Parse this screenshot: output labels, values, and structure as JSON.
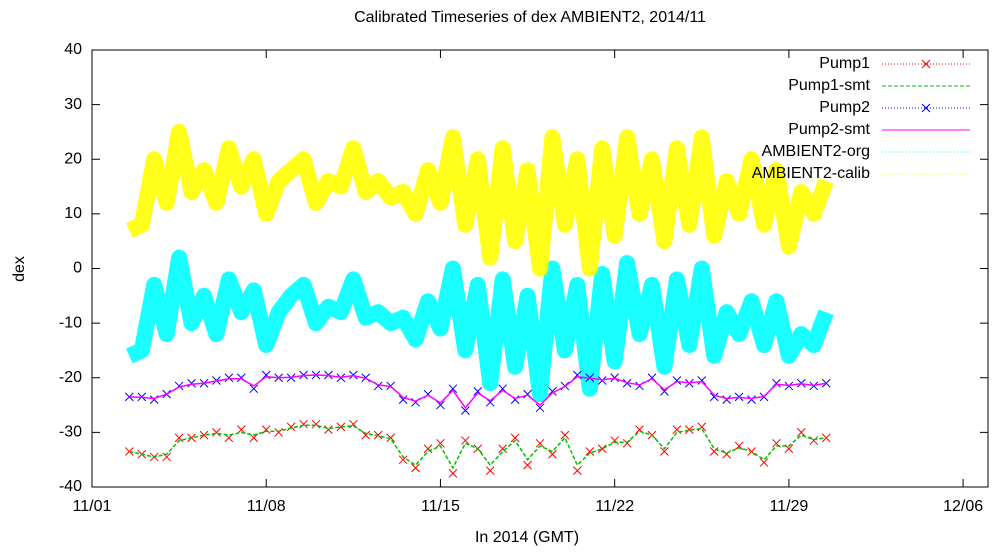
{
  "chart_data": {
    "type": "line",
    "title": "Calibrated Timeseries of dex AMBIENT2, 2014/11",
    "xlabel": "In 2014 (GMT)",
    "ylabel": "dex",
    "xlim": [
      0,
      36
    ],
    "xticks": [
      {
        "value": 0,
        "label": "11/01"
      },
      {
        "value": 7,
        "label": "11/08"
      },
      {
        "value": 14,
        "label": "11/15"
      },
      {
        "value": 21,
        "label": "11/22"
      },
      {
        "value": 28,
        "label": "11/29"
      },
      {
        "value": 35,
        "label": "12/06"
      }
    ],
    "ylim": [
      -40,
      40
    ],
    "yticks": [
      -40,
      -30,
      -20,
      -10,
      0,
      10,
      20,
      30,
      40
    ],
    "legend": "top-right",
    "x": [
      1.5,
      2,
      2.5,
      3,
      3.5,
      4,
      4.5,
      5,
      5.5,
      6,
      6.5,
      7,
      7.5,
      8,
      8.5,
      9,
      9.5,
      10,
      10.5,
      11,
      11.5,
      12,
      12.5,
      13,
      13.5,
      14,
      14.5,
      15,
      15.5,
      16,
      16.5,
      17,
      17.5,
      18,
      18.5,
      19,
      19.5,
      20,
      20.5,
      21,
      21.5,
      22,
      22.5,
      23,
      23.5,
      24,
      24.5,
      25,
      25.5,
      26,
      26.5,
      27,
      27.5,
      28,
      28.5,
      29,
      29.5
    ],
    "series": [
      {
        "name": "Pump1",
        "color": "#ff0000",
        "style": "marker",
        "values": [
          -33.5,
          -34,
          -34.5,
          -34.5,
          -31,
          -31,
          -30.5,
          -30,
          -31,
          -29.5,
          -31,
          -29.5,
          -30,
          -29,
          -28.5,
          -28.5,
          -29.5,
          -29,
          -28.5,
          -30.5,
          -30.5,
          -31,
          -35,
          -36.5,
          -33,
          -32,
          -37.5,
          -31.5,
          -33,
          -37,
          -33,
          -31,
          -36,
          -32,
          -34,
          -30.5,
          -37,
          -33.5,
          -33,
          -31.5,
          -32,
          -29.5,
          -30.5,
          -33.5,
          -29.5,
          -29.5,
          -29,
          -33.5,
          -34,
          -32.5,
          -33.5,
          -35.5,
          -32,
          -33,
          -30,
          -31.5,
          -31
        ]
      },
      {
        "name": "Pump1-smt",
        "color": "#00c000",
        "style": "dashed",
        "values": [
          -33.5,
          -34,
          -34.5,
          -34,
          -31.5,
          -31,
          -30.5,
          -30.2,
          -30.5,
          -30,
          -30.5,
          -29.8,
          -29.8,
          -29.2,
          -28.7,
          -28.7,
          -29.3,
          -29,
          -28.8,
          -30.2,
          -30.6,
          -31.2,
          -34.5,
          -36,
          -33.5,
          -32.5,
          -36.5,
          -32,
          -33,
          -36,
          -33.5,
          -31.5,
          -35,
          -32.5,
          -33.5,
          -31,
          -36,
          -33.8,
          -33,
          -31.8,
          -31.8,
          -29.8,
          -30.5,
          -33,
          -30,
          -29.6,
          -29.3,
          -33,
          -33.8,
          -32.8,
          -33.5,
          -35,
          -32.5,
          -32.5,
          -30.5,
          -31.3,
          -31
        ]
      },
      {
        "name": "Pump2",
        "color": "#0000ff",
        "style": "marker",
        "values": [
          -23.5,
          -23.5,
          -24,
          -23,
          -21.5,
          -21,
          -21,
          -20.5,
          -20,
          -20,
          -22,
          -19.5,
          -20,
          -20,
          -19.5,
          -19.5,
          -19.5,
          -20,
          -19.5,
          -20,
          -21.5,
          -21.5,
          -24,
          -24.5,
          -23,
          -25,
          -22,
          -26,
          -22.5,
          -24.5,
          -22,
          -24,
          -23,
          -25.5,
          -22.5,
          -21.5,
          -19.5,
          -20,
          -20.5,
          -20,
          -21,
          -21.5,
          -20,
          -22.5,
          -20.5,
          -21,
          -20.5,
          -23.5,
          -24,
          -23.5,
          -24,
          -23.5,
          -21,
          -21.5,
          -21,
          -21.5,
          -21
        ]
      },
      {
        "name": "Pump2-smt",
        "color": "#ff00ff",
        "style": "line",
        "values": [
          -23.5,
          -23.6,
          -23.8,
          -23,
          -21.7,
          -21.2,
          -21,
          -20.6,
          -20.2,
          -20.2,
          -21.5,
          -19.8,
          -20,
          -19.9,
          -19.6,
          -19.5,
          -19.6,
          -19.9,
          -19.6,
          -20.1,
          -21.3,
          -21.6,
          -23.6,
          -24.3,
          -23.2,
          -24.6,
          -22.3,
          -25.5,
          -22.8,
          -24.2,
          -22.3,
          -23.8,
          -23.2,
          -25,
          -22.8,
          -21.6,
          -19.8,
          -20.1,
          -20.4,
          -20.1,
          -20.9,
          -21.3,
          -20.2,
          -22.2,
          -20.7,
          -20.9,
          -20.7,
          -23.2,
          -23.8,
          -23.6,
          -23.8,
          -23.4,
          -21.2,
          -21.4,
          -21.1,
          -21.4,
          -21
        ]
      },
      {
        "name": "AMBIENT2-org",
        "color": "#00ffff",
        "style": "band",
        "values": [
          -16,
          -15,
          -3,
          -12,
          2,
          -10,
          -5,
          -12,
          -2,
          -8,
          -4,
          -14,
          -8,
          -5,
          -3,
          -10,
          -7,
          -8,
          -2,
          -9,
          -8,
          -10,
          -9,
          -13,
          -6,
          -11,
          0,
          -15,
          -3,
          -21,
          -2,
          -18,
          -5,
          -23,
          0,
          -15,
          -3,
          -22,
          -1,
          -17,
          1,
          -12,
          -3,
          -18,
          -2,
          -14,
          0,
          -16,
          -8,
          -12,
          -6,
          -14,
          -6,
          -16,
          -12,
          -14,
          -8
        ]
      },
      {
        "name": "AMBIENT2-calib",
        "color": "#ffff00",
        "style": "band",
        "values": [
          7,
          8,
          20,
          12,
          25,
          14,
          18,
          12,
          22,
          15,
          20,
          10,
          16,
          18,
          20,
          12,
          16,
          15,
          22,
          14,
          16,
          13,
          14,
          10,
          18,
          12,
          24,
          8,
          20,
          2,
          22,
          5,
          18,
          0,
          24,
          8,
          20,
          0,
          22,
          6,
          24,
          10,
          20,
          5,
          22,
          8,
          24,
          6,
          16,
          10,
          20,
          8,
          18,
          4,
          14,
          10,
          16
        ]
      }
    ]
  }
}
